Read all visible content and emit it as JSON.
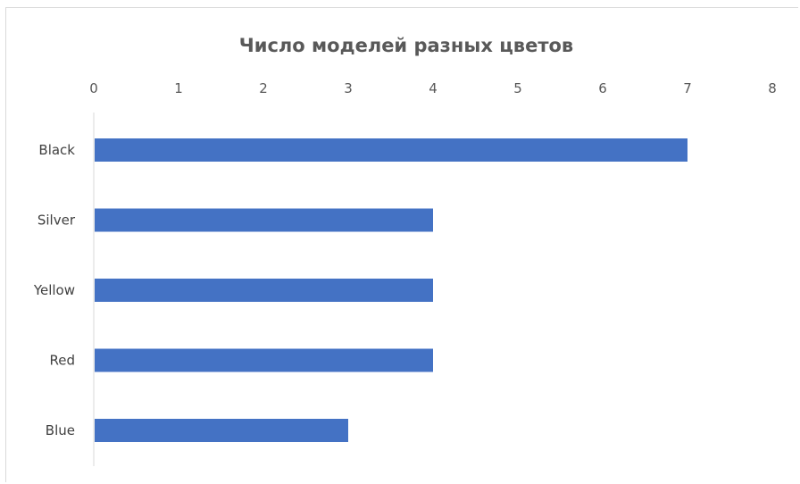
{
  "chart_data": {
    "type": "bar",
    "orientation": "horizontal",
    "title": "Число моделей разных цветов",
    "xlabel": "",
    "ylabel": "",
    "categories": [
      "Black",
      "Silver",
      "Yellow",
      "Red",
      "Blue"
    ],
    "values": [
      7,
      4,
      4,
      4,
      3
    ],
    "xlim": [
      0,
      8
    ],
    "ticks": [
      "0",
      "1",
      "2",
      "3",
      "4",
      "5",
      "6",
      "7",
      "8"
    ],
    "axis_position": "top",
    "grid": false,
    "legend": "none",
    "bar_color": "#4472C4"
  }
}
